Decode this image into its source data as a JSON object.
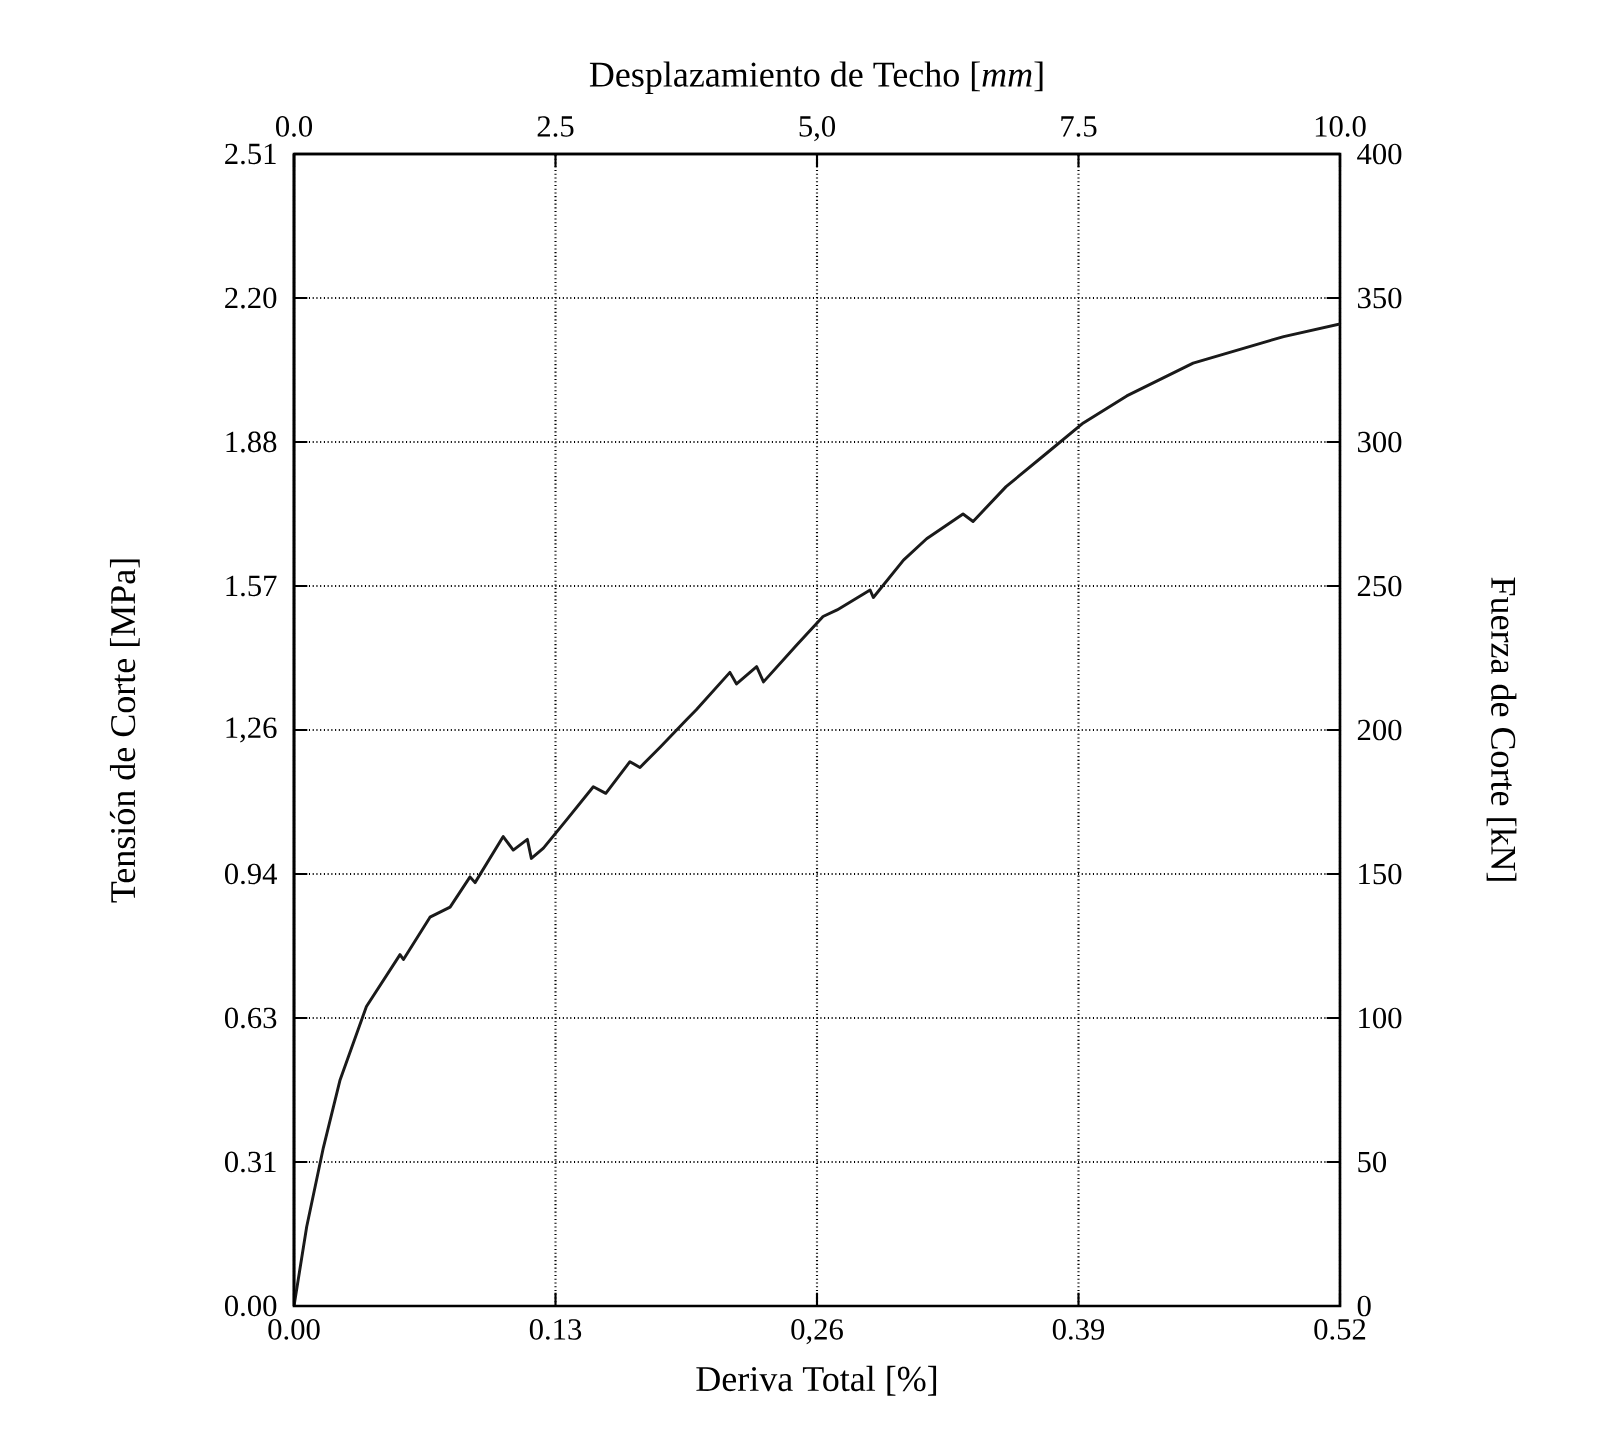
{
  "chart_data": {
    "type": "line",
    "xlabel": "Deriva Total [%]",
    "ylabel": "Tensión de Corte [MPa]",
    "x2label": "Desplazamiento de Techo [*mm*]",
    "y2label": "Fuerza de Corte [kN]",
    "xlim": [
      0,
      0.52
    ],
    "xticks": [
      {
        "value": 0,
        "label": "0.00"
      },
      0.13,
      {
        "value": 0.26,
        "label": "0,26"
      },
      0.39,
      0.52
    ],
    "x2lim": [
      0,
      10
    ],
    "x2ticks": [
      {
        "value": 0,
        "label": "0.0"
      },
      2.5,
      {
        "value": 5,
        "label": "5,0"
      },
      7.5,
      {
        "value": 10,
        "label": "10.0"
      }
    ],
    "ylim": [
      0,
      2.51
    ],
    "yticks": [
      {
        "value": 0,
        "label": "0.00"
      },
      {
        "value": 0.31375,
        "label": "0.31"
      },
      {
        "value": 0.6275,
        "label": "0.63"
      },
      {
        "value": 0.94125,
        "label": "0.94"
      },
      {
        "value": 1.255,
        "label": "1,26"
      },
      {
        "value": 1.56875,
        "label": "1.57"
      },
      {
        "value": 1.8825,
        "label": "1.88"
      },
      {
        "value": 2.19625,
        "label": "2.20"
      },
      2.51
    ],
    "y2lim": [
      0,
      400
    ],
    "y2ticks": [
      0,
      50,
      100,
      150,
      200,
      250,
      300,
      350,
      400
    ],
    "grid": true,
    "marker": "none",
    "line_style": "solid",
    "series": [
      {
        "axis": "y2",
        "color": "#1a1a1a",
        "x": [
          0,
          0.0063,
          0.0146,
          0.0229,
          0.036,
          0.0527,
          0.0544,
          0.0676,
          0.0776,
          0.0875,
          0.09,
          0.104,
          0.109,
          0.116,
          0.118,
          0.124,
          0.1355,
          0.1488,
          0.155,
          0.167,
          0.172,
          0.182,
          0.195,
          0.2,
          0.2167,
          0.22,
          0.23,
          0.2334,
          0.2498,
          0.263,
          0.27,
          0.2864,
          0.288,
          0.303,
          0.3145,
          0.3326,
          0.3376,
          0.354,
          0.374,
          0.3924,
          0.414,
          0.447,
          0.492,
          0.52
        ],
        "values": [
          0,
          27.5,
          55,
          78.5,
          104,
          122,
          120.3,
          135,
          138.5,
          149,
          147,
          163,
          158.3,
          162,
          155.4,
          159,
          168.8,
          180.3,
          178,
          189,
          187,
          194,
          203.5,
          207,
          220,
          216,
          222,
          216.7,
          229.4,
          239.4,
          241.7,
          248.6,
          246,
          259,
          266.4,
          275,
          272.4,
          284.5,
          296,
          306.6,
          316,
          327.4,
          336.6,
          341
        ]
      }
    ]
  }
}
